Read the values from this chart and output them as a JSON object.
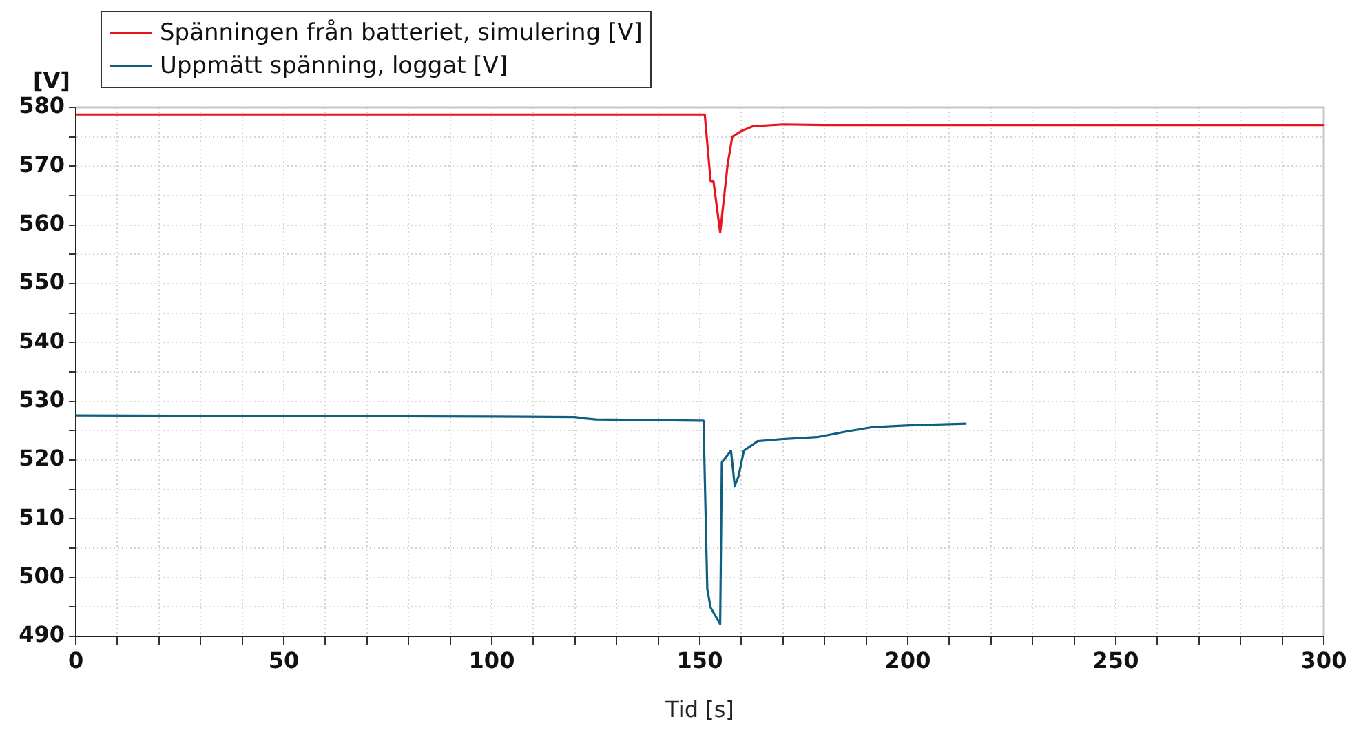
{
  "chart_data": {
    "type": "line",
    "xlabel": "Tid [s]",
    "ylabel": "[V]",
    "xlim": [
      0,
      300
    ],
    "ylim": [
      490,
      580
    ],
    "xticks": [
      0,
      {
        "value": 10,
        "label": null
      },
      {
        "value": 20,
        "label": null
      },
      {
        "value": 30,
        "label": null
      },
      {
        "value": 40,
        "label": null
      },
      50,
      {
        "value": 60,
        "label": null
      },
      {
        "value": 70,
        "label": null
      },
      {
        "value": 80,
        "label": null
      },
      {
        "value": 90,
        "label": null
      },
      100,
      {
        "value": 110,
        "label": null
      },
      {
        "value": 120,
        "label": null
      },
      {
        "value": 130,
        "label": null
      },
      {
        "value": 140,
        "label": null
      },
      150,
      {
        "value": 160,
        "label": null
      },
      {
        "value": 170,
        "label": null
      },
      {
        "value": 180,
        "label": null
      },
      {
        "value": 190,
        "label": null
      },
      200,
      {
        "value": 210,
        "label": null
      },
      {
        "value": 220,
        "label": null
      },
      {
        "value": 230,
        "label": null
      },
      {
        "value": 240,
        "label": null
      },
      250,
      {
        "value": 260,
        "label": null
      },
      {
        "value": 270,
        "label": null
      },
      {
        "value": 280,
        "label": null
      },
      {
        "value": 290,
        "label": null
      },
      300
    ],
    "yticks": [
      490,
      {
        "value": 495,
        "label": null
      },
      500,
      {
        "value": 505,
        "label": null
      },
      510,
      {
        "value": 515,
        "label": null
      },
      520,
      {
        "value": 525,
        "label": null
      },
      530,
      {
        "value": 535,
        "label": null
      },
      540,
      {
        "value": 545,
        "label": null
      },
      550,
      {
        "value": 555,
        "label": null
      },
      560,
      {
        "value": 565,
        "label": null
      },
      570,
      {
        "value": 575,
        "label": null
      },
      580
    ],
    "grid": true,
    "legend": "top left",
    "marker": "none",
    "line_style": "solid",
    "series": [
      {
        "name": "Spänningen från batteriet, simulering [V]",
        "color": "#e8141e",
        "x": [
          0,
          151.2,
          152.6,
          153.3,
          154.9,
          156.7,
          157.8,
          160.0,
          162.8,
          170,
          180,
          300
        ],
        "values": [
          578.8,
          578.8,
          567.5,
          567.4,
          558.7,
          570.3,
          575.0,
          576.0,
          576.8,
          577.1,
          577.0,
          577.0
        ]
      },
      {
        "name": "Uppmätt spänning, loggat [V]",
        "color": "#0f6080",
        "x": [
          0,
          50,
          100,
          120,
          122,
          125,
          150,
          150.9,
          151.8,
          152.6,
          154.9,
          155.3,
          157.5,
          158.4,
          159.3,
          160.6,
          163.9,
          170.5,
          178.2,
          184.9,
          191.5,
          200.3,
          214.1
        ],
        "values": [
          527.6,
          527.5,
          527.4,
          527.3,
          527.1,
          526.9,
          526.7,
          526.7,
          498.1,
          494.9,
          492.1,
          519.6,
          521.6,
          515.6,
          517.2,
          521.6,
          523.2,
          523.6,
          523.9,
          524.8,
          525.6,
          525.9,
          526.2
        ]
      }
    ]
  }
}
